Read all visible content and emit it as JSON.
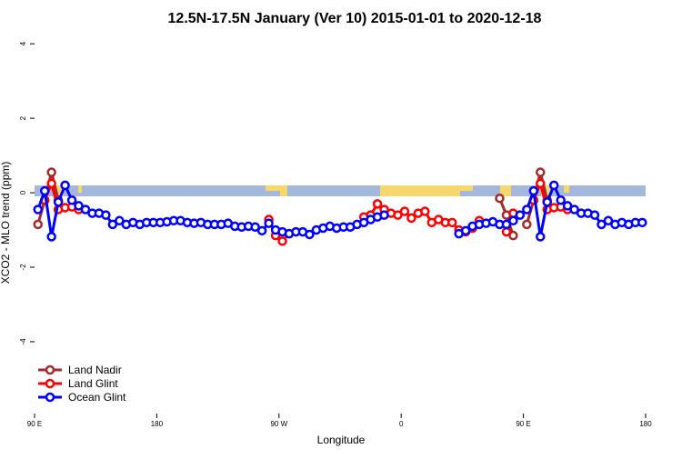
{
  "chart_data": {
    "type": "line",
    "title": "12.5N-17.5N January (Ver 10)   2015-01-01 to 2020-12-18",
    "x_label": "Longitude",
    "y_label": "XCO2 - MLO trend (ppm)",
    "x": [
      92.5,
      97.5,
      102.5,
      107.5,
      112.5,
      117.5,
      122.5,
      127.5,
      132.5,
      137.5,
      142.5,
      147.5,
      152.5,
      157.5,
      162.5,
      167.5,
      172.5,
      177.5,
      182.5,
      187.5,
      192.5,
      197.5,
      202.5,
      207.5,
      212.5,
      217.5,
      222.5,
      227.5,
      232.5,
      237.5,
      242.5,
      247.5,
      252.5,
      257.5,
      262.5,
      267.5,
      272.5,
      277.5,
      282.5,
      287.5,
      292.5,
      297.5,
      302.5,
      307.5,
      312.5,
      317.5,
      322.5,
      327.5,
      332.5,
      337.5,
      342.5,
      347.5,
      352.5,
      357.5,
      362.5,
      367.5,
      372.5,
      377.5,
      382.5,
      387.5,
      392.5,
      397.5,
      402.5,
      407.5,
      412.5,
      417.5,
      422.5,
      427.5,
      432.5,
      437.5,
      442.5,
      447.5,
      452.5,
      457.5,
      462.5,
      467.5,
      472.5,
      477.5,
      482.5,
      487.5,
      492.5,
      497.5,
      502.5,
      507.5,
      512.5,
      517.5,
      522.5,
      527.5,
      532.5,
      537.5
    ],
    "series": [
      {
        "name": "Land Nadir",
        "color": "#a52a2a",
        "values": [
          -0.85,
          -0.2,
          0.55,
          -0.2,
          null,
          null,
          null,
          null,
          null,
          null,
          null,
          null,
          null,
          null,
          null,
          null,
          null,
          null,
          null,
          null,
          null,
          null,
          null,
          null,
          null,
          null,
          null,
          null,
          null,
          null,
          null,
          null,
          null,
          null,
          null,
          null,
          null,
          null,
          null,
          null,
          null,
          null,
          null,
          null,
          null,
          null,
          null,
          null,
          null,
          null,
          null,
          null,
          null,
          null,
          null,
          null,
          null,
          null,
          null,
          null,
          null,
          null,
          null,
          null,
          null,
          null,
          null,
          null,
          -0.15,
          -0.6,
          -1.15,
          null,
          -0.85,
          -0.2,
          0.55,
          -0.2,
          null,
          null,
          null,
          null,
          null,
          null,
          null,
          null,
          null,
          null,
          null,
          null,
          null,
          null
        ]
      },
      {
        "name": "Land Glint",
        "color": "#ff0000",
        "values": [
          null,
          -0.2,
          0.25,
          -0.45,
          -0.4,
          -0.38,
          -0.45,
          null,
          null,
          null,
          null,
          null,
          null,
          null,
          null,
          null,
          null,
          null,
          null,
          null,
          null,
          null,
          null,
          null,
          null,
          null,
          null,
          null,
          null,
          null,
          null,
          null,
          null,
          null,
          -0.72,
          -1.15,
          -1.3,
          -1.1,
          null,
          null,
          null,
          null,
          null,
          null,
          null,
          null,
          null,
          null,
          -0.65,
          -0.6,
          -0.3,
          -0.45,
          -0.55,
          -0.6,
          -0.5,
          -0.68,
          -0.55,
          -0.5,
          -0.8,
          -0.72,
          -0.8,
          -0.8,
          -1.0,
          -1.05,
          -0.95,
          -0.75,
          null,
          null,
          null,
          -1.05,
          -0.55,
          null,
          null,
          -0.2,
          0.25,
          -0.45,
          -0.4,
          -0.38,
          -0.45,
          null,
          null,
          null,
          null,
          null,
          null,
          null,
          null,
          null,
          null,
          null
        ]
      },
      {
        "name": "Ocean Glint",
        "color": "#0000ff",
        "values": [
          -0.45,
          0.05,
          -1.18,
          -0.25,
          0.2,
          -0.2,
          -0.35,
          -0.45,
          -0.55,
          -0.55,
          -0.6,
          -0.85,
          -0.75,
          -0.85,
          -0.8,
          -0.85,
          -0.8,
          -0.8,
          -0.8,
          -0.78,
          -0.75,
          -0.75,
          -0.8,
          -0.82,
          -0.8,
          -0.85,
          -0.85,
          -0.85,
          -0.82,
          -0.9,
          -0.92,
          -0.9,
          -0.92,
          -1.02,
          -0.82,
          -1.0,
          -1.05,
          -1.1,
          -1.05,
          -1.05,
          -1.12,
          -1.0,
          -0.95,
          -0.9,
          -0.95,
          -0.92,
          -0.92,
          -0.85,
          -0.8,
          -0.72,
          -0.65,
          -0.6,
          null,
          null,
          null,
          null,
          null,
          null,
          null,
          null,
          null,
          null,
          -1.1,
          -1.02,
          -0.9,
          -0.85,
          -0.82,
          -0.78,
          -0.85,
          -0.85,
          -0.75,
          -0.6,
          -0.45,
          0.05,
          -1.18,
          -0.25,
          0.2,
          -0.2,
          -0.35,
          -0.45,
          -0.55,
          -0.55,
          -0.6,
          -0.85,
          -0.75,
          -0.85,
          -0.8,
          -0.85,
          -0.8,
          -0.8
        ]
      }
    ],
    "xlim": [
      90,
      540
    ],
    "xticks": [
      {
        "value": 90,
        "label": "90 E"
      },
      180,
      {
        "value": 270,
        "label": "90 W"
      },
      {
        "value": 360,
        "label": "0"
      },
      {
        "value": 450,
        "label": "90 E"
      },
      {
        "value": 540,
        "label": "180"
      }
    ],
    "ylim": [
      -5.93,
      4.2
    ],
    "yticks": [
      -4,
      -2,
      0,
      2,
      4
    ],
    "legend": "bottom-left"
  }
}
